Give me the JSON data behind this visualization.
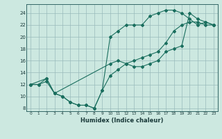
{
  "title": "",
  "xlabel": "Humidex (Indice chaleur)",
  "bg_color": "#cce8e0",
  "grid_color": "#99bbbb",
  "line_color": "#1a6e5e",
  "xlim": [
    -0.5,
    23.5
  ],
  "ylim": [
    7.5,
    25.5
  ],
  "xticks": [
    0,
    1,
    2,
    3,
    4,
    5,
    6,
    7,
    8,
    9,
    10,
    11,
    12,
    13,
    14,
    15,
    16,
    17,
    18,
    19,
    20,
    21,
    22,
    23
  ],
  "yticks": [
    8,
    10,
    12,
    14,
    16,
    18,
    20,
    22,
    24
  ],
  "line1_x": [
    0,
    1,
    2,
    3,
    4,
    5,
    6,
    7,
    8,
    9,
    10,
    11,
    12,
    13,
    14,
    15,
    16,
    17,
    18,
    19,
    20,
    21,
    22,
    23
  ],
  "line1_y": [
    12,
    12,
    12.5,
    10.5,
    10,
    9,
    8.5,
    8.5,
    8,
    11,
    20,
    21,
    22,
    22,
    22,
    23.5,
    24,
    24.5,
    24.5,
    24,
    23,
    22,
    22.5,
    22
  ],
  "line2_x": [
    0,
    2,
    3,
    10,
    11,
    12,
    13,
    14,
    15,
    16,
    17,
    18,
    19,
    20,
    21,
    22,
    23
  ],
  "line2_y": [
    12,
    13,
    10.5,
    15.5,
    16,
    15.5,
    15,
    15,
    15.5,
    16,
    17.5,
    18,
    18.5,
    24,
    23,
    22.5,
    22
  ],
  "line3_x": [
    0,
    1,
    2,
    3,
    4,
    5,
    6,
    7,
    8,
    9,
    10,
    11,
    12,
    13,
    14,
    15,
    16,
    17,
    18,
    19,
    20,
    21,
    22,
    23
  ],
  "line3_y": [
    12,
    12,
    13,
    10.5,
    10,
    9,
    8.5,
    8.5,
    8,
    11,
    13.5,
    14.5,
    15.5,
    16,
    16.5,
    17,
    17.5,
    19,
    21,
    22,
    22.5,
    22.5,
    22,
    22
  ]
}
